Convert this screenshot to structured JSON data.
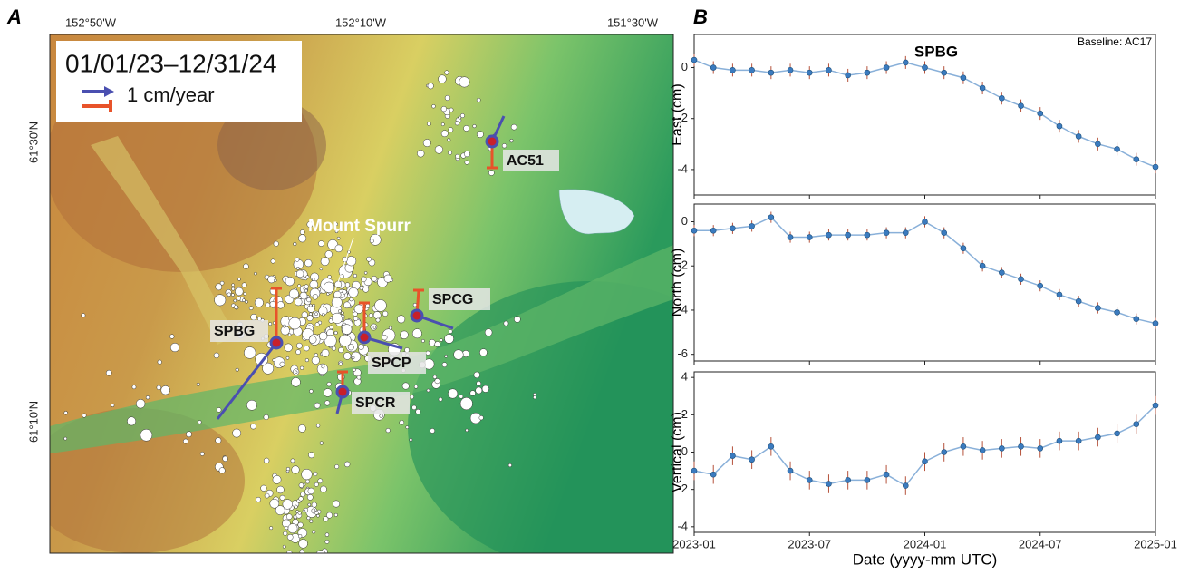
{
  "map": {
    "panel_label": "A",
    "legend_title": "01/01/23–12/31/24",
    "legend_scale": "1 cm/year",
    "lon_ticks": [
      "152°50'W",
      "152°10'W",
      "151°30'W"
    ],
    "lat_ticks": [
      "61°30'N",
      "61°10'N"
    ],
    "volcano": "Mount Spurr",
    "stations": [
      "AC51",
      "SPCG",
      "SPBG",
      "SPCP",
      "SPCR"
    ]
  },
  "panel_b_label": "B",
  "chart_data": [
    {
      "type": "scatter",
      "title": "SPBG",
      "annotation": "Baseline: AC17",
      "ylabel": "East (cm)",
      "x": [
        "2023-01",
        "2023-02",
        "2023-03",
        "2023-04",
        "2023-05",
        "2023-06",
        "2023-07",
        "2023-08",
        "2023-09",
        "2023-10",
        "2023-11",
        "2023-12",
        "2024-01",
        "2024-02",
        "2024-03",
        "2024-04",
        "2024-05",
        "2024-06",
        "2024-07",
        "2024-08",
        "2024-09",
        "2024-10",
        "2024-11",
        "2024-12",
        "2025-01"
      ],
      "values": [
        0.3,
        0,
        -0.1,
        -0.1,
        -0.2,
        -0.1,
        -0.2,
        -0.1,
        -0.3,
        -0.2,
        0,
        0.2,
        0,
        -0.2,
        -0.4,
        -0.8,
        -1.2,
        -1.5,
        -1.8,
        -2.3,
        -2.7,
        -3.0,
        -3.2,
        -3.6,
        -3.9
      ],
      "errors": [
        0.25,
        0.25,
        0.25,
        0.25,
        0.25,
        0.25,
        0.25,
        0.25,
        0.25,
        0.25,
        0.25,
        0.25,
        0.25,
        0.25,
        0.25,
        0.25,
        0.25,
        0.25,
        0.25,
        0.25,
        0.25,
        0.25,
        0.25,
        0.25,
        0.25
      ],
      "color": "#3b7bbf",
      "error_color": "#b5523b",
      "xlim": [
        "2023-01",
        "2025-01"
      ],
      "ylim": [
        -5,
        1.3
      ],
      "yticks": [
        -4,
        -2,
        0
      ]
    },
    {
      "type": "scatter",
      "ylabel": "North (cm)",
      "x": [
        "2023-01",
        "2023-02",
        "2023-03",
        "2023-04",
        "2023-05",
        "2023-06",
        "2023-07",
        "2023-08",
        "2023-09",
        "2023-10",
        "2023-11",
        "2023-12",
        "2024-01",
        "2024-02",
        "2024-03",
        "2024-04",
        "2024-05",
        "2024-06",
        "2024-07",
        "2024-08",
        "2024-09",
        "2024-10",
        "2024-11",
        "2024-12",
        "2025-01"
      ],
      "values": [
        -0.4,
        -0.4,
        -0.3,
        -0.2,
        0.2,
        -0.7,
        -0.7,
        -0.6,
        -0.6,
        -0.6,
        -0.5,
        -0.5,
        0,
        -0.5,
        -1.2,
        -2.0,
        -2.3,
        -2.6,
        -2.9,
        -3.3,
        -3.6,
        -3.9,
        -4.1,
        -4.4,
        -4.6
      ],
      "errors": [
        0.25,
        0.25,
        0.25,
        0.25,
        0.25,
        0.25,
        0.25,
        0.25,
        0.25,
        0.25,
        0.25,
        0.25,
        0.25,
        0.25,
        0.25,
        0.25,
        0.25,
        0.25,
        0.25,
        0.25,
        0.25,
        0.25,
        0.25,
        0.25,
        0.25
      ],
      "color": "#3b7bbf",
      "error_color": "#b5523b",
      "xlim": [
        "2023-01",
        "2025-01"
      ],
      "ylim": [
        -6.3,
        0.8
      ],
      "yticks": [
        -6,
        -4,
        -2,
        0
      ]
    },
    {
      "type": "scatter",
      "ylabel": "Vertical (cm)",
      "xlabel": "Date (yyyy-mm UTC)",
      "x": [
        "2023-01",
        "2023-02",
        "2023-03",
        "2023-04",
        "2023-05",
        "2023-06",
        "2023-07",
        "2023-08",
        "2023-09",
        "2023-10",
        "2023-11",
        "2023-12",
        "2024-01",
        "2024-02",
        "2024-03",
        "2024-04",
        "2024-05",
        "2024-06",
        "2024-07",
        "2024-08",
        "2024-09",
        "2024-10",
        "2024-11",
        "2024-12",
        "2025-01"
      ],
      "values": [
        -1,
        -1.2,
        -0.2,
        -0.4,
        0.3,
        -1,
        -1.5,
        -1.7,
        -1.5,
        -1.5,
        -1.2,
        -1.8,
        -0.5,
        0,
        0.3,
        0.1,
        0.2,
        0.3,
        0.2,
        0.6,
        0.6,
        0.8,
        1.0,
        1.5,
        2.5
      ],
      "errors": [
        0.5,
        0.5,
        0.5,
        0.5,
        0.5,
        0.5,
        0.5,
        0.5,
        0.5,
        0.5,
        0.5,
        0.5,
        0.5,
        0.5,
        0.5,
        0.5,
        0.5,
        0.5,
        0.5,
        0.5,
        0.5,
        0.5,
        0.5,
        0.5,
        0.5
      ],
      "color": "#3b7bbf",
      "error_color": "#b5523b",
      "xlim": [
        "2023-01",
        "2025-01"
      ],
      "xticks": [
        "2023-01",
        "2023-07",
        "2024-01",
        "2024-07",
        "2025-01"
      ],
      "ylim": [
        -4.3,
        4.3
      ],
      "yticks": [
        -4,
        -2,
        0,
        2,
        4
      ]
    }
  ]
}
